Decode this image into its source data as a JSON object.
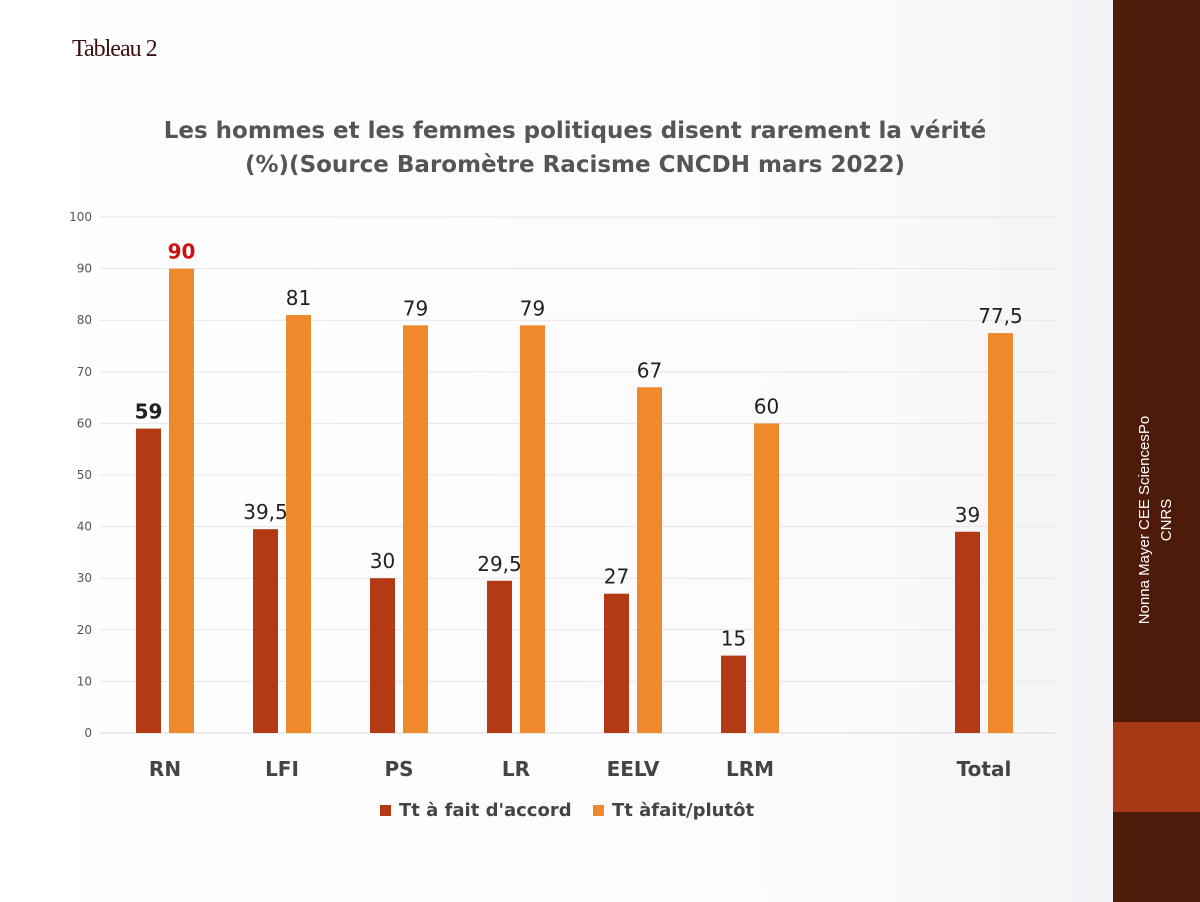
{
  "slide_label": "Tableau 2",
  "sidebar": {
    "line1": "Nonna Mayer CEE SciencesPo",
    "line2": "CNRS"
  },
  "chart_data": {
    "type": "bar",
    "title_line1": "Les hommes et les femmes politiques disent rarement la vérité",
    "title_line2": "(%)(Source Baromètre Racisme CNCDH mars 2022)",
    "categories": [
      "RN",
      "LFI",
      "PS",
      "LR",
      "EELV",
      "LRM",
      "Total"
    ],
    "series": [
      {
        "name": "Tt à fait d'accord",
        "color": "#b33a15",
        "values": [
          59,
          39.5,
          30,
          29.5,
          27,
          15,
          39
        ],
        "labels": [
          "59",
          "39,5",
          "30",
          "29,5",
          "27",
          "15",
          "39"
        ]
      },
      {
        "name": "Tt àfait/plutôt",
        "color": "#ee8a2c",
        "values": [
          90,
          81,
          79,
          79,
          67,
          60,
          77.5
        ],
        "labels": [
          "90",
          "81",
          "79",
          "79",
          "67",
          "60",
          "77,5"
        ]
      }
    ],
    "highlighted_label": {
      "category": "RN",
      "series_1_color": "#222222",
      "series_2_color": "#cc1111"
    },
    "yticks": [
      "0",
      "10",
      "20",
      "30",
      "40",
      "50",
      "60",
      "70",
      "80",
      "90",
      "100"
    ],
    "ylim": [
      0,
      100
    ],
    "grid": true,
    "legend_position": "bottom"
  }
}
